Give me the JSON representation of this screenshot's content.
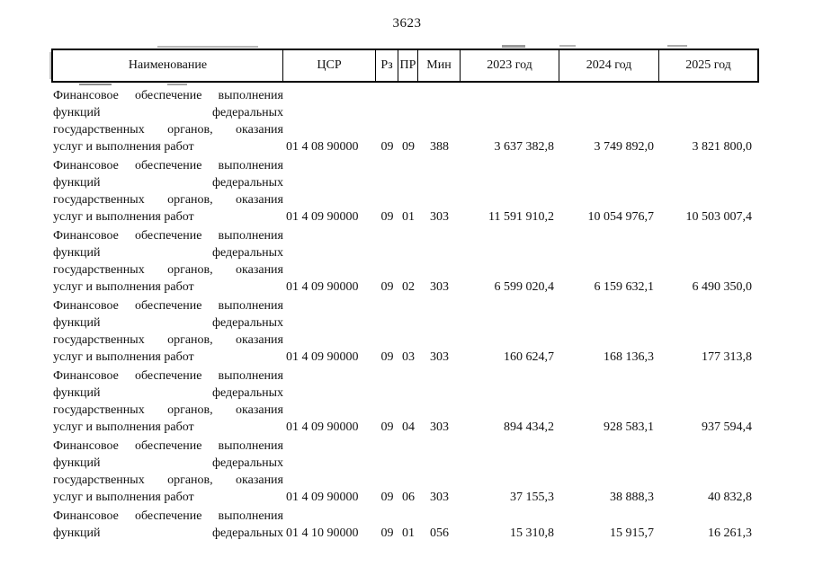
{
  "page": {
    "number": "3623"
  },
  "table": {
    "headers": [
      "Наименование",
      "ЦСР",
      "Рз",
      "ПР",
      "Мин",
      "2023 год",
      "2024 год",
      "2025 год"
    ],
    "rows": [
      {
        "name_lines": [
          "Финансовое обеспечение выполнения",
          "функций федеральных",
          "государственных органов, оказания",
          "услуг и выполнения работ"
        ],
        "justify_last": false,
        "csr": "01 4 08 90000",
        "rz": "09",
        "pr": "09",
        "min": "388",
        "y2023": "3 637 382,8",
        "y2024": "3 749 892,0",
        "y2025": "3 821 800,0"
      },
      {
        "name_lines": [
          "Финансовое обеспечение выполнения",
          "функций федеральных",
          "государственных органов, оказания",
          "услуг и выполнения работ"
        ],
        "justify_last": false,
        "csr": "01 4 09 90000",
        "rz": "09",
        "pr": "01",
        "min": "303",
        "y2023": "11 591 910,2",
        "y2024": "10 054 976,7",
        "y2025": "10 503 007,4"
      },
      {
        "name_lines": [
          "Финансовое обеспечение выполнения",
          "функций федеральных",
          "государственных органов, оказания",
          "услуг и выполнения работ"
        ],
        "justify_last": false,
        "csr": "01 4 09 90000",
        "rz": "09",
        "pr": "02",
        "min": "303",
        "y2023": "6 599 020,4",
        "y2024": "6 159 632,1",
        "y2025": "6 490 350,0"
      },
      {
        "name_lines": [
          "Финансовое обеспечение выполнения",
          "функций федеральных",
          "государственных органов, оказания",
          "услуг и выполнения работ"
        ],
        "justify_last": false,
        "csr": "01 4 09 90000",
        "rz": "09",
        "pr": "03",
        "min": "303",
        "y2023": "160 624,7",
        "y2024": "168 136,3",
        "y2025": "177 313,8"
      },
      {
        "name_lines": [
          "Финансовое обеспечение выполнения",
          "функций федеральных",
          "государственных органов, оказания",
          "услуг и выполнения работ"
        ],
        "justify_last": false,
        "csr": "01 4 09 90000",
        "rz": "09",
        "pr": "04",
        "min": "303",
        "y2023": "894 434,2",
        "y2024": "928 583,1",
        "y2025": "937 594,4"
      },
      {
        "name_lines": [
          "Финансовое обеспечение выполнения",
          "функций федеральных",
          "государственных органов, оказания",
          "услуг и выполнения работ"
        ],
        "justify_last": false,
        "csr": "01 4 09 90000",
        "rz": "09",
        "pr": "06",
        "min": "303",
        "y2023": "37 155,3",
        "y2024": "38 888,3",
        "y2025": "40 832,8"
      },
      {
        "name_lines": [
          "Финансовое обеспечение выполнения",
          "функций федеральных"
        ],
        "justify_last": true,
        "csr": "01 4 10 90000",
        "rz": "09",
        "pr": "01",
        "min": "056",
        "y2023": "15 310,8",
        "y2024": "15 915,7",
        "y2025": "16 261,3"
      }
    ]
  }
}
